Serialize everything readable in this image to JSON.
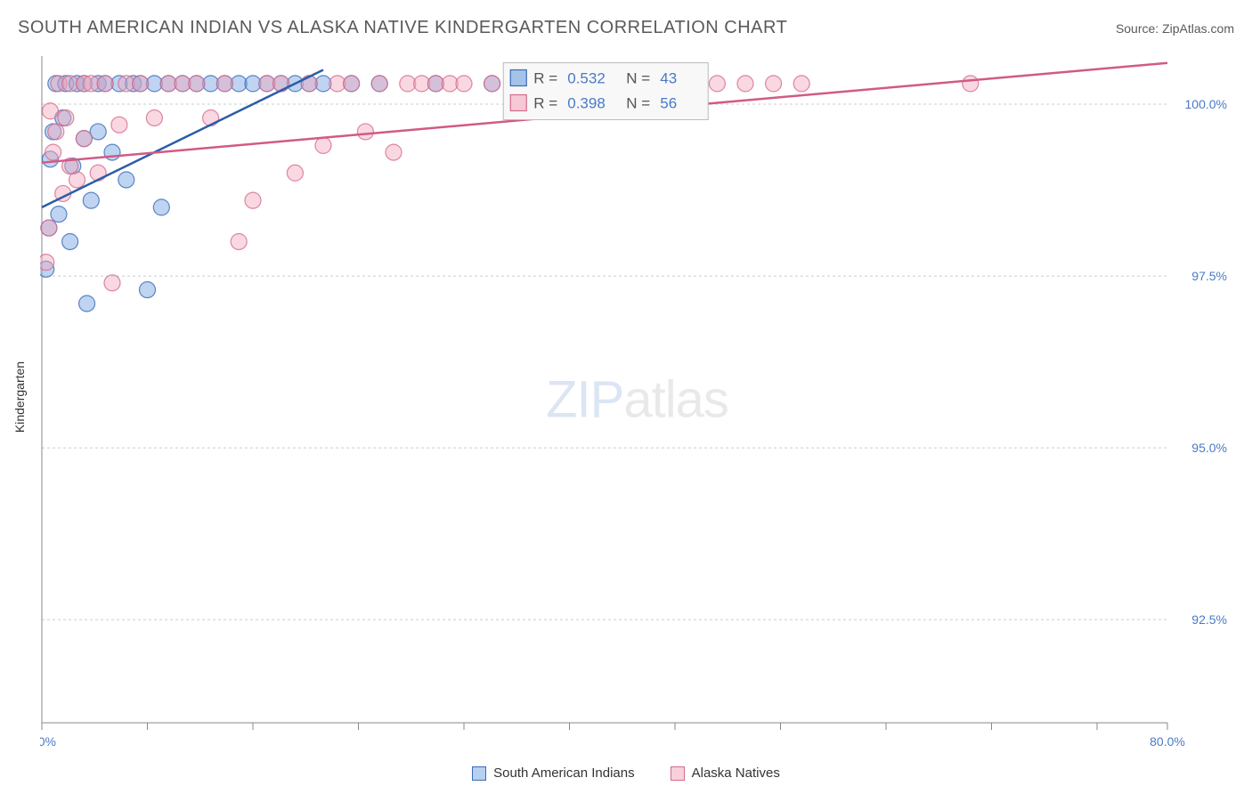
{
  "title": "SOUTH AMERICAN INDIAN VS ALASKA NATIVE KINDERGARTEN CORRELATION CHART",
  "source": "Source: ZipAtlas.com",
  "y_axis_label": "Kindergarten",
  "watermark": {
    "part1": "ZIP",
    "part2": "atlas"
  },
  "chart": {
    "type": "scatter",
    "background_color": "#ffffff",
    "grid_color": "#cccccc",
    "axis_color": "#888888",
    "x_domain": [
      0,
      80
    ],
    "y_domain": [
      91.0,
      100.7
    ],
    "y_ticks": [
      {
        "v": 92.5,
        "label": "92.5%"
      },
      {
        "v": 95.0,
        "label": "95.0%"
      },
      {
        "v": 97.5,
        "label": "97.5%"
      },
      {
        "v": 100.0,
        "label": "100.0%"
      }
    ],
    "x_tick_positions": [
      0,
      7.5,
      15,
      22.5,
      30,
      37.5,
      45,
      52.5,
      60,
      67.5,
      75,
      80
    ],
    "x_tick_labels": [
      {
        "v": 0,
        "label": "0.0%"
      },
      {
        "v": 80,
        "label": "80.0%"
      }
    ],
    "marker_radius": 9,
    "marker_opacity": 0.45,
    "line_width": 2.5,
    "series": [
      {
        "key": "south_american_indians",
        "label": "South American Indians",
        "fill_color": "#6ea0e0",
        "stroke_color": "#3a6ab8",
        "line_color": "#2b5ca8",
        "R": "0.532",
        "N": "43",
        "trend": {
          "x1": 0,
          "y1": 98.5,
          "x2": 20,
          "y2": 100.5
        },
        "points": [
          [
            0.3,
            97.6
          ],
          [
            0.5,
            98.2
          ],
          [
            0.6,
            99.2
          ],
          [
            0.8,
            99.6
          ],
          [
            1.0,
            100.3
          ],
          [
            1.2,
            98.4
          ],
          [
            1.5,
            99.8
          ],
          [
            1.7,
            100.3
          ],
          [
            2.0,
            98.0
          ],
          [
            2.2,
            99.1
          ],
          [
            2.5,
            100.3
          ],
          [
            3.0,
            99.5
          ],
          [
            3.0,
            100.3
          ],
          [
            3.2,
            97.1
          ],
          [
            3.5,
            98.6
          ],
          [
            4.0,
            100.3
          ],
          [
            4.0,
            99.6
          ],
          [
            4.5,
            100.3
          ],
          [
            5.0,
            99.3
          ],
          [
            5.5,
            100.3
          ],
          [
            6.0,
            98.9
          ],
          [
            6.5,
            100.3
          ],
          [
            7.0,
            100.3
          ],
          [
            7.5,
            97.3
          ],
          [
            8.0,
            100.3
          ],
          [
            8.5,
            98.5
          ],
          [
            9.0,
            100.3
          ],
          [
            10.0,
            100.3
          ],
          [
            11.0,
            100.3
          ],
          [
            12.0,
            100.3
          ],
          [
            13.0,
            100.3
          ],
          [
            14.0,
            100.3
          ],
          [
            15.0,
            100.3
          ],
          [
            16.0,
            100.3
          ],
          [
            17.0,
            100.3
          ],
          [
            18.0,
            100.3
          ],
          [
            19.0,
            100.3
          ],
          [
            20.0,
            100.3
          ],
          [
            22.0,
            100.3
          ],
          [
            24.0,
            100.3
          ],
          [
            28.0,
            100.3
          ],
          [
            32.0,
            100.3
          ],
          [
            36.0,
            100.3
          ]
        ]
      },
      {
        "key": "alaska_natives",
        "label": "Alaska Natives",
        "fill_color": "#f2a8bd",
        "stroke_color": "#d66a8c",
        "line_color": "#d15a85",
        "R": "0.398",
        "N": "56",
        "trend": {
          "x1": 0,
          "y1": 99.15,
          "x2": 80,
          "y2": 100.6
        },
        "points": [
          [
            0.3,
            97.7
          ],
          [
            0.5,
            98.2
          ],
          [
            0.6,
            99.9
          ],
          [
            0.8,
            99.3
          ],
          [
            1.0,
            99.6
          ],
          [
            1.2,
            100.3
          ],
          [
            1.5,
            98.7
          ],
          [
            1.7,
            99.8
          ],
          [
            2.0,
            100.3
          ],
          [
            2.0,
            99.1
          ],
          [
            2.5,
            98.9
          ],
          [
            3.0,
            100.3
          ],
          [
            3.0,
            99.5
          ],
          [
            3.5,
            100.3
          ],
          [
            4.0,
            99.0
          ],
          [
            4.5,
            100.3
          ],
          [
            5.0,
            97.4
          ],
          [
            5.5,
            99.7
          ],
          [
            6.0,
            100.3
          ],
          [
            7.0,
            100.3
          ],
          [
            8.0,
            99.8
          ],
          [
            9.0,
            100.3
          ],
          [
            10.0,
            100.3
          ],
          [
            11.0,
            100.3
          ],
          [
            12.0,
            99.8
          ],
          [
            13.0,
            100.3
          ],
          [
            14.0,
            98.0
          ],
          [
            15.0,
            98.6
          ],
          [
            16.0,
            100.3
          ],
          [
            17.0,
            100.3
          ],
          [
            18.0,
            99.0
          ],
          [
            19.0,
            100.3
          ],
          [
            20.0,
            99.4
          ],
          [
            21.0,
            100.3
          ],
          [
            22.0,
            100.3
          ],
          [
            23.0,
            99.6
          ],
          [
            24.0,
            100.3
          ],
          [
            25.0,
            99.3
          ],
          [
            26.0,
            100.3
          ],
          [
            27.0,
            100.3
          ],
          [
            28.0,
            100.3
          ],
          [
            29.0,
            100.3
          ],
          [
            30.0,
            100.3
          ],
          [
            32.0,
            100.3
          ],
          [
            34.0,
            100.3
          ],
          [
            36.0,
            100.3
          ],
          [
            38.0,
            100.3
          ],
          [
            40.0,
            100.3
          ],
          [
            42.0,
            100.3
          ],
          [
            44.0,
            100.3
          ],
          [
            46.0,
            100.3
          ],
          [
            48.0,
            100.3
          ],
          [
            50.0,
            100.3
          ],
          [
            52.0,
            100.3
          ],
          [
            54.0,
            100.3
          ],
          [
            66.0,
            100.3
          ]
        ]
      }
    ],
    "stat_box": {
      "x_percent": 41,
      "y_percent": 1,
      "bg": "#f8f8f8",
      "border": "#bbbbbb",
      "label_color": "#555555",
      "value_color": "#4a7ac7"
    }
  },
  "bottom_legend": {
    "items": [
      {
        "label": "South American Indians",
        "fill": "#b7d0ef",
        "stroke": "#3a6ab8"
      },
      {
        "label": "Alaska Natives",
        "fill": "#f7d0dc",
        "stroke": "#d66a8c"
      }
    ]
  }
}
